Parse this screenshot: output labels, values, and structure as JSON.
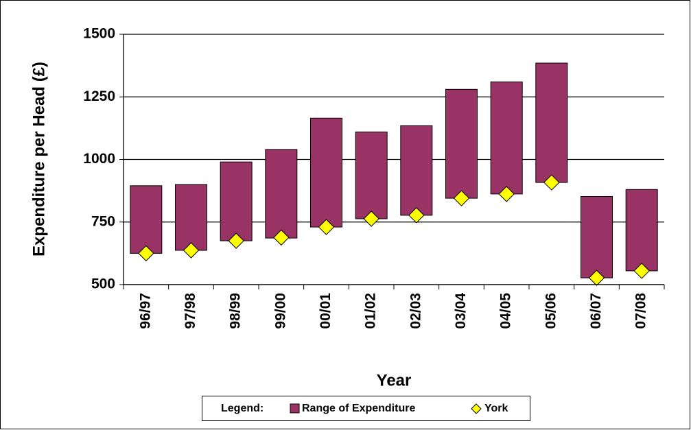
{
  "chart_data": {
    "type": "floating-bar",
    "x_label": "Year",
    "y_label": "Expenditure per Head (£)",
    "categories": [
      "96/97",
      "97/98",
      "98/99",
      "99/00",
      "00/01",
      "01/02",
      "02/03",
      "03/04",
      "04/05",
      "05/06",
      "06/07",
      "07/08"
    ],
    "series": [
      {
        "name": "Range of Expenditure",
        "color": "#993366",
        "low": [
          625,
          637,
          675,
          686,
          730,
          763,
          777,
          845,
          862,
          908,
          527,
          555
        ],
        "high": [
          895,
          900,
          990,
          1040,
          1165,
          1110,
          1135,
          1280,
          1310,
          1385,
          852,
          880
        ]
      },
      {
        "name": "York",
        "color": "#ffff00",
        "values": [
          625,
          637,
          675,
          688,
          730,
          763,
          777,
          845,
          862,
          908,
          527,
          555
        ]
      }
    ],
    "ylim": [
      500,
      1500
    ],
    "yticks": [
      500,
      750,
      1000,
      1250,
      1500
    ],
    "grid": true,
    "legend_title": "Legend:"
  }
}
